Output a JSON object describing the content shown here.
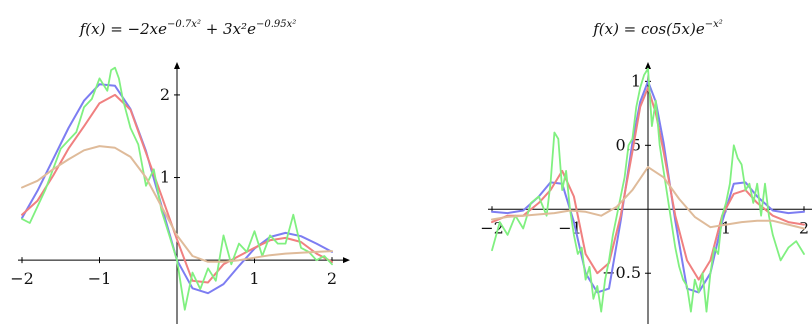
{
  "chart_data": [
    {
      "type": "line",
      "title": "f(x) = −2xe^{−0.7x²} + 3x²e^{−0.95x²}",
      "title_parts": {
        "lhs": "f(x) = −2xe",
        "exp1": "−0.7x²",
        "mid": " + 3x²e",
        "exp2": "−0.95x²"
      },
      "xlim": [
        -2,
        2
      ],
      "ylim": [
        -0.7,
        2.35
      ],
      "x_ticks": [
        -2,
        -1,
        1,
        2
      ],
      "x_tick_labels": [
        "−2",
        "−1",
        "1",
        "2"
      ],
      "y_ticks": [
        1,
        2
      ],
      "y_tick_labels": [
        "1",
        "2"
      ],
      "grid": false,
      "series": [
        {
          "color": "#7d7df2",
          "width": 2.0,
          "x": [
            -2,
            -1.8,
            -1.6,
            -1.4,
            -1.2,
            -1,
            -0.8,
            -0.6,
            -0.4,
            -0.2,
            0,
            0.2,
            0.4,
            0.6,
            0.8,
            1,
            1.2,
            1.4,
            1.6,
            1.8,
            2
          ],
          "y": [
            0.51,
            0.84,
            1.22,
            1.6,
            1.93,
            2.13,
            2.11,
            1.83,
            1.32,
            0.66,
            0,
            -0.34,
            -0.4,
            -0.29,
            -0.07,
            0.14,
            0.28,
            0.33,
            0.29,
            0.2,
            0.1
          ]
        },
        {
          "color": "#f08080",
          "width": 2.0,
          "x": [
            -2,
            -1.8,
            -1.6,
            -1.4,
            -1.2,
            -1,
            -0.8,
            -0.6,
            -0.4,
            -0.2,
            0,
            0.2,
            0.4,
            0.6,
            0.8,
            1,
            1.2,
            1.4,
            1.6,
            1.8,
            2
          ],
          "y": [
            0.55,
            0.72,
            1.02,
            1.35,
            1.62,
            1.9,
            2.0,
            1.82,
            1.3,
            0.78,
            0.25,
            -0.25,
            -0.27,
            -0.05,
            0.05,
            0.15,
            0.24,
            0.27,
            0.22,
            0.08,
            -0.02
          ]
        },
        {
          "color": "#80f080",
          "width": 1.8,
          "x": [
            -2,
            -1.9,
            -1.8,
            -1.7,
            -1.6,
            -1.5,
            -1.4,
            -1.3,
            -1.2,
            -1.1,
            -1.0,
            -0.9,
            -0.85,
            -0.8,
            -0.75,
            -0.7,
            -0.6,
            -0.5,
            -0.4,
            -0.3,
            -0.2,
            -0.1,
            0,
            0.1,
            0.2,
            0.3,
            0.4,
            0.5,
            0.6,
            0.7,
            0.8,
            0.9,
            1.0,
            1.1,
            1.2,
            1.3,
            1.4,
            1.5,
            1.6,
            1.7,
            1.8,
            1.9,
            2.0
          ],
          "y": [
            0.5,
            0.45,
            0.65,
            0.85,
            1.1,
            1.35,
            1.45,
            1.55,
            1.85,
            1.95,
            2.2,
            2.05,
            2.3,
            2.33,
            2.2,
            1.95,
            1.6,
            1.4,
            0.9,
            1.1,
            0.6,
            0.3,
            0,
            -0.6,
            -0.15,
            -0.35,
            -0.1,
            -0.25,
            0.3,
            -0.05,
            0.2,
            0.1,
            0.35,
            0.05,
            0.3,
            0.2,
            0.2,
            0.55,
            0.15,
            0.1,
            0.0,
            0.05,
            -0.05
          ]
        },
        {
          "color": "#dfbb9a",
          "width": 2.0,
          "x": [
            -2,
            -1.8,
            -1.6,
            -1.4,
            -1.2,
            -1,
            -0.8,
            -0.6,
            -0.4,
            -0.2,
            0,
            0.2,
            0.4,
            0.6,
            0.8,
            1,
            1.2,
            1.4,
            1.6,
            1.8,
            2
          ],
          "y": [
            0.88,
            0.96,
            1.1,
            1.22,
            1.33,
            1.38,
            1.36,
            1.25,
            1.0,
            0.65,
            0.3,
            0.05,
            -0.02,
            -0.02,
            0.0,
            0.03,
            0.06,
            0.08,
            0.09,
            0.1,
            0.11
          ]
        }
      ]
    },
    {
      "type": "line",
      "title": "f(x) = cos(5x)e^{−x²}",
      "title_parts": {
        "lhs": "f(x) = cos(5x)e",
        "exp1": "−x²"
      },
      "xlim": [
        -2,
        2
      ],
      "ylim": [
        -0.85,
        1.12
      ],
      "x_ticks": [
        -2,
        -1,
        1,
        2
      ],
      "x_tick_labels": [
        "−2",
        "−1",
        "1",
        "2"
      ],
      "y_ticks": [
        -0.5,
        0.5,
        1
      ],
      "y_tick_labels": [
        "−0.5",
        "0.5",
        "1"
      ],
      "grid": false,
      "series": [
        {
          "color": "#7d7df2",
          "width": 2.0,
          "x": [
            -2,
            -1.8,
            -1.6,
            -1.4,
            -1.25,
            -1.1,
            -0.95,
            -0.8,
            -0.65,
            -0.5,
            -0.35,
            -0.2,
            -0.1,
            0,
            0.1,
            0.2,
            0.35,
            0.5,
            0.65,
            0.8,
            0.95,
            1.1,
            1.25,
            1.4,
            1.6,
            1.8,
            2
          ],
          "y": [
            -0.02,
            -0.03,
            -0.01,
            0.1,
            0.21,
            0.2,
            -0.1,
            -0.5,
            -0.65,
            -0.62,
            -0.09,
            0.52,
            0.84,
            1.0,
            0.84,
            0.52,
            -0.09,
            -0.62,
            -0.65,
            -0.5,
            -0.1,
            0.2,
            0.21,
            0.1,
            -0.01,
            -0.03,
            -0.02
          ]
        },
        {
          "color": "#f08080",
          "width": 2.0,
          "x": [
            -2,
            -1.8,
            -1.6,
            -1.4,
            -1.25,
            -1.1,
            -0.95,
            -0.8,
            -0.65,
            -0.5,
            -0.35,
            -0.2,
            -0.1,
            0,
            0.1,
            0.2,
            0.35,
            0.5,
            0.65,
            0.8,
            0.95,
            1.1,
            1.25,
            1.4,
            1.6,
            1.8,
            2
          ],
          "y": [
            -0.1,
            -0.05,
            -0.05,
            0.05,
            0.15,
            0.3,
            0.1,
            -0.35,
            -0.5,
            -0.42,
            -0.05,
            0.45,
            0.8,
            0.95,
            0.75,
            0.45,
            -0.05,
            -0.4,
            -0.55,
            -0.4,
            -0.05,
            0.12,
            0.15,
            0.05,
            -0.05,
            -0.1,
            -0.12
          ]
        },
        {
          "color": "#80f080",
          "width": 1.8,
          "x": [
            -2,
            -1.9,
            -1.8,
            -1.7,
            -1.6,
            -1.5,
            -1.4,
            -1.3,
            -1.25,
            -1.2,
            -1.15,
            -1.1,
            -1.05,
            -1.0,
            -0.95,
            -0.9,
            -0.85,
            -0.8,
            -0.75,
            -0.7,
            -0.65,
            -0.6,
            -0.55,
            -0.5,
            -0.45,
            -0.4,
            -0.35,
            -0.3,
            -0.25,
            -0.2,
            -0.15,
            -0.1,
            -0.05,
            0,
            0.05,
            0.1,
            0.15,
            0.2,
            0.25,
            0.3,
            0.35,
            0.4,
            0.45,
            0.5,
            0.55,
            0.6,
            0.65,
            0.7,
            0.75,
            0.8,
            0.85,
            0.9,
            0.95,
            1.0,
            1.05,
            1.1,
            1.15,
            1.2,
            1.25,
            1.3,
            1.35,
            1.4,
            1.45,
            1.5,
            1.55,
            1.6,
            1.7,
            1.8,
            1.9,
            2.0
          ],
          "y": [
            -0.32,
            -0.1,
            -0.2,
            -0.05,
            -0.15,
            0.05,
            0.1,
            -0.05,
            0.2,
            0.6,
            0.55,
            0.15,
            0.3,
            0.0,
            -0.2,
            -0.35,
            -0.3,
            -0.55,
            -0.45,
            -0.7,
            -0.6,
            -0.8,
            -0.55,
            -0.4,
            -0.2,
            -0.05,
            0.1,
            0.25,
            0.5,
            0.55,
            0.8,
            0.95,
            1.05,
            1.1,
            0.65,
            0.85,
            0.5,
            0.3,
            0.1,
            -0.1,
            -0.3,
            -0.45,
            -0.55,
            -0.6,
            -0.8,
            -0.55,
            -0.65,
            -0.5,
            -0.8,
            -0.5,
            -0.3,
            -0.35,
            -0.05,
            0.05,
            0.2,
            0.5,
            0.4,
            0.35,
            0.15,
            0.2,
            0.05,
            0.2,
            -0.05,
            0.2,
            -0.05,
            -0.2,
            -0.4,
            -0.3,
            -0.25,
            -0.35
          ]
        },
        {
          "color": "#dfbb9a",
          "width": 2.0,
          "x": [
            -2,
            -1.8,
            -1.6,
            -1.4,
            -1.2,
            -1,
            -0.8,
            -0.6,
            -0.4,
            -0.2,
            0,
            0.2,
            0.4,
            0.6,
            0.8,
            1,
            1.2,
            1.4,
            1.6,
            1.8,
            2
          ],
          "y": [
            -0.08,
            -0.06,
            -0.05,
            -0.04,
            -0.03,
            -0.01,
            -0.02,
            -0.05,
            0.02,
            0.15,
            0.33,
            0.25,
            0.08,
            -0.06,
            -0.14,
            -0.12,
            -0.1,
            -0.09,
            -0.09,
            -0.12,
            -0.15
          ]
        }
      ]
    }
  ]
}
